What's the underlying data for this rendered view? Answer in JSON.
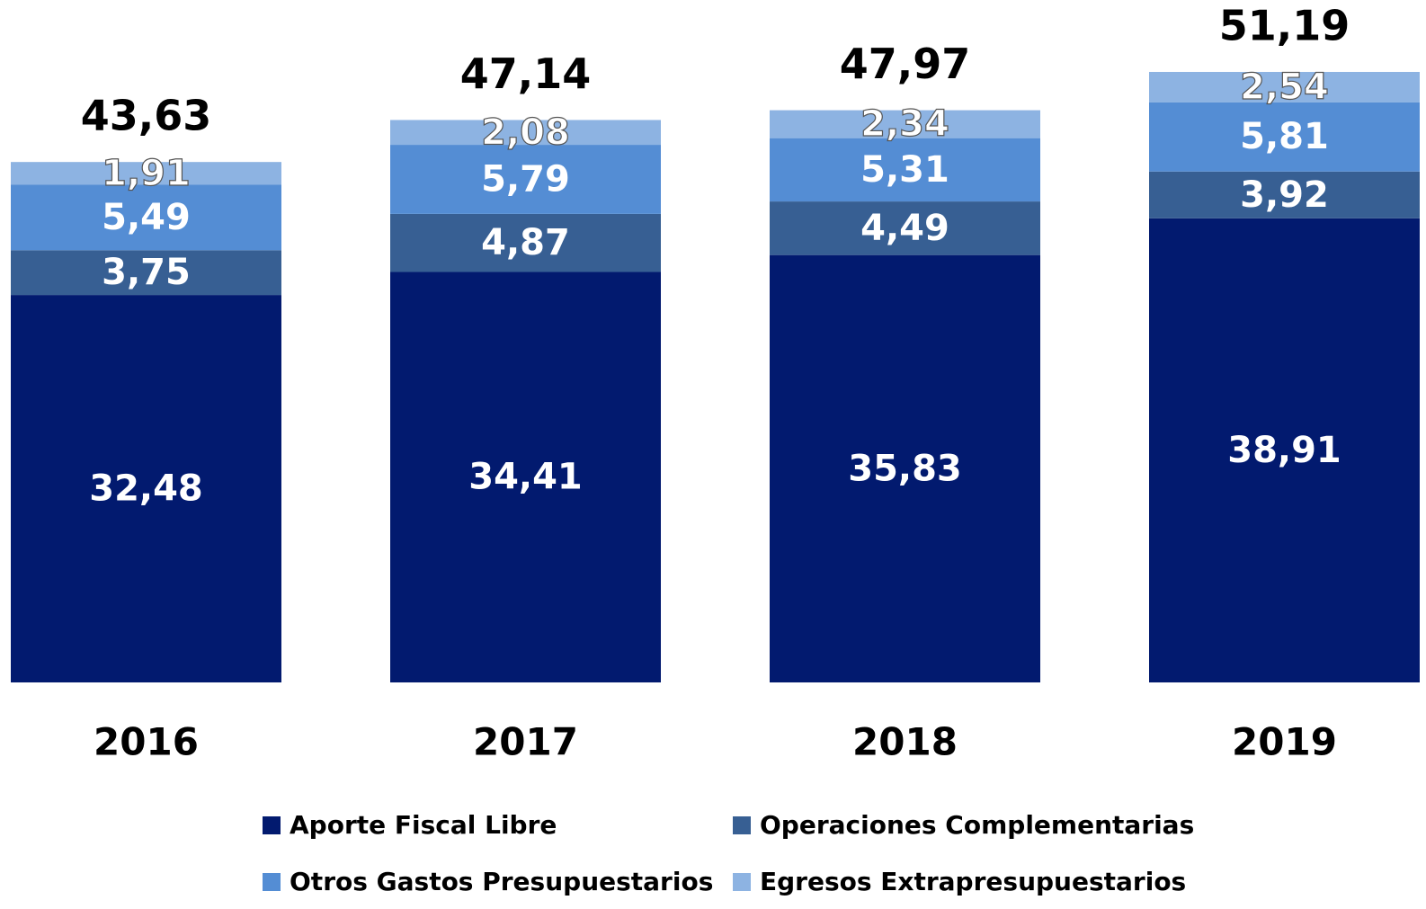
{
  "chart_data": {
    "type": "stacked_bar",
    "categories": [
      "2016",
      "2017",
      "2018",
      "2019"
    ],
    "series": [
      {
        "name": "Aporte Fiscal Libre",
        "color": "#021a6f",
        "values": [
          32.48,
          34.41,
          35.83,
          38.91
        ],
        "value_labels": [
          "32,48",
          "34,41",
          "35,83",
          "38,91"
        ]
      },
      {
        "name": "Operaciones Complementarias",
        "color": "#375f93",
        "values": [
          3.75,
          4.87,
          4.49,
          3.92
        ],
        "value_labels": [
          "3,75",
          "4,87",
          "4,49",
          "3,92"
        ]
      },
      {
        "name": "Otros Gastos Presupuestarios",
        "color": "#548dd4",
        "values": [
          5.49,
          5.79,
          5.31,
          5.81
        ],
        "value_labels": [
          "5,49",
          "5,79",
          "5,31",
          "5,81"
        ]
      },
      {
        "name": "Egresos Extrapresupuestarios",
        "color": "#8db3e2",
        "values": [
          1.91,
          2.08,
          2.34,
          2.54
        ],
        "value_labels": [
          "1,91",
          "2,08",
          "2,34",
          "2,54"
        ]
      }
    ],
    "totals": [
      43.63,
      47.14,
      47.97,
      51.19
    ],
    "total_labels": [
      "43,63",
      "47,14",
      "47,97",
      "51,19"
    ]
  }
}
